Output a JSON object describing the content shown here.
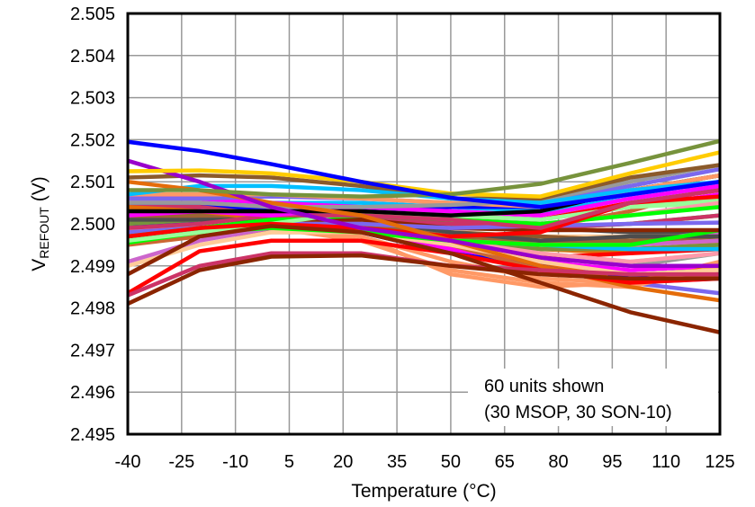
{
  "chart_data": {
    "type": "line",
    "xlabel": "Temperature (°C)",
    "ylabel": {
      "main": "V",
      "subscript": "REFOUT",
      "unit": " (V)"
    },
    "xlim": [
      -40,
      125
    ],
    "ylim": [
      2.495,
      2.505
    ],
    "xticks": [
      "-40",
      "-25",
      "-10",
      "5",
      "20",
      "35",
      "50",
      "65",
      "80",
      "95",
      "110",
      "125"
    ],
    "yticks": [
      "2.495",
      "2.496",
      "2.497",
      "2.498",
      "2.499",
      "2.500",
      "2.501",
      "2.502",
      "2.503",
      "2.504",
      "2.505"
    ],
    "grid": true,
    "legend": "none",
    "annotation": [
      "60 units shown",
      "(30 MSOP, 30 SON-10)"
    ],
    "x": [
      -40,
      -20,
      0,
      25,
      50,
      75,
      100,
      125
    ],
    "series": [
      {
        "color": "#FF9966",
        "values": [
          2.4997,
          2.4998,
          2.4999,
          2.4997,
          2.4991,
          2.4987,
          2.4986,
          2.4988
        ]
      },
      {
        "color": "#7B68EE",
        "values": [
          2.4999,
          2.5,
          2.5,
          2.4998,
          2.4994,
          2.4989,
          2.4986,
          2.49835
        ]
      },
      {
        "color": "#FFCC00",
        "values": [
          2.5,
          2.5,
          2.5001,
          2.5,
          2.4998,
          2.4996,
          2.4995,
          2.4997
        ]
      },
      {
        "color": "#77933C",
        "values": [
          2.4998,
          2.4999,
          2.5,
          2.4999,
          2.4997,
          2.4995,
          2.4994,
          2.4995
        ]
      },
      {
        "color": "#0000FF",
        "values": [
          2.4997,
          2.4999,
          2.5,
          2.5,
          2.4996,
          2.4992,
          2.4987,
          2.4988
        ]
      },
      {
        "color": "#CC6633",
        "values": [
          2.5006,
          2.5006,
          2.5005,
          2.5003,
          2.5001,
          2.4999,
          2.5003,
          2.5009
        ]
      },
      {
        "color": "#E46C0A",
        "values": [
          2.5,
          2.5001,
          2.5002,
          2.5001,
          2.4997,
          2.4994,
          2.4993,
          2.4996
        ]
      },
      {
        "color": "#99FF99",
        "values": [
          2.5004,
          2.5004,
          2.5004,
          2.5003,
          2.5002,
          2.5002,
          2.5004,
          2.5005
        ]
      },
      {
        "color": "#FF0000",
        "values": [
          2.5003,
          2.5004,
          2.5004,
          2.5003,
          2.5002,
          2.5001,
          2.5005,
          2.5008
        ]
      },
      {
        "color": "#00BFFF",
        "values": [
          2.5004,
          2.5005,
          2.5005,
          2.5005,
          2.5004,
          2.5003,
          2.5006,
          2.5009
        ]
      },
      {
        "color": "#FF00FF",
        "values": [
          2.5006,
          2.5006,
          2.5005,
          2.5004,
          2.5002,
          2.5001,
          2.5004,
          2.5007
        ]
      },
      {
        "color": "#FF99AA",
        "values": [
          2.5005,
          2.5005,
          2.5004,
          2.5003,
          2.5001,
          2.5,
          2.5002,
          2.5005
        ]
      },
      {
        "color": "#FFCC99",
        "values": [
          2.5,
          2.5001,
          2.5002,
          2.5001,
          2.4998,
          2.4997,
          2.4997,
          2.4998
        ]
      },
      {
        "color": "#4D4D4D",
        "values": [
          2.5003,
          2.5003,
          2.5002,
          2.5002,
          2.5,
          2.4999,
          2.4998,
          2.4998
        ]
      },
      {
        "color": "#CC66CC",
        "values": [
          2.4999,
          2.5,
          2.5001,
          2.5,
          2.4997,
          2.4996,
          2.4996,
          2.4998
        ]
      },
      {
        "color": "#8B5A2B",
        "values": [
          2.5001,
          2.5002,
          2.5002,
          2.5001,
          2.4998,
          2.4997,
          2.4996,
          2.4996
        ]
      },
      {
        "color": "#00FF00",
        "values": [
          2.4999,
          2.5,
          2.5001,
          2.5001,
          2.5,
          2.4999,
          2.5,
          2.5002
        ]
      },
      {
        "color": "#FF9966",
        "values": [
          2.4999,
          2.5,
          2.5,
          2.4997,
          2.4988,
          2.4985,
          2.4986,
          2.4991
        ]
      },
      {
        "color": "#999999",
        "values": [
          2.5,
          2.5001,
          2.5001,
          2.4999,
          2.4996,
          2.4992,
          2.499,
          2.4993
        ]
      },
      {
        "color": "#7B68EE",
        "values": [
          2.5002,
          2.5002,
          2.5001,
          2.4999,
          2.4994,
          2.499,
          2.4986,
          2.4987
        ]
      },
      {
        "color": "#CC3366",
        "values": [
          2.5004,
          2.5004,
          2.5003,
          2.5001,
          2.5,
          2.4999,
          2.5,
          2.5002
        ]
      },
      {
        "color": "#FF0000",
        "values": [
          2.5002,
          2.5002,
          2.5002,
          2.5,
          2.4995,
          2.4992,
          2.4993,
          2.4994
        ]
      },
      {
        "color": "#99FF99",
        "values": [
          2.5003,
          2.5003,
          2.5003,
          2.5001,
          2.4996,
          2.4993,
          2.4991,
          2.4993
        ]
      },
      {
        "color": "#0000FF",
        "values": [
          2.5,
          2.5,
          2.5,
          2.4998,
          2.4993,
          2.499,
          2.4988,
          2.4989
        ]
      },
      {
        "color": "#FF00FF",
        "values": [
          2.5001,
          2.5001,
          2.5,
          2.4998,
          2.4994,
          2.4991,
          2.4989,
          2.499
        ]
      },
      {
        "color": "#FFCC00",
        "values": [
          2.5001,
          2.5001,
          2.5001,
          2.4999,
          2.4997,
          2.4995,
          2.4995,
          2.4996
        ]
      },
      {
        "color": "#77933C",
        "values": [
          2.5,
          2.5001,
          2.5001,
          2.4998,
          2.4996,
          2.4994,
          2.4994,
          2.4995
        ]
      },
      {
        "color": "#00BFFF",
        "values": [
          2.4996,
          2.4998,
          2.4999,
          2.4998,
          2.4996,
          2.4995,
          2.4994,
          2.4994
        ]
      },
      {
        "color": "#996633",
        "values": [
          2.5002,
          2.5002,
          2.5002,
          2.5,
          2.4997,
          2.4996,
          2.4996,
          2.4997
        ]
      },
      {
        "color": "#E46C0A",
        "values": [
          2.5004,
          2.5003,
          2.5001,
          2.4999,
          2.4995,
          2.4991,
          2.4986,
          2.499
        ]
      },
      {
        "color": "#CC6633",
        "values": [
          2.4995,
          2.4997,
          2.4998,
          2.4998,
          2.4995,
          2.4989,
          2.4986,
          2.4988
        ]
      },
      {
        "color": "#FF9966",
        "values": [
          2.4998,
          2.4999,
          2.4999,
          2.4996,
          2.4989,
          2.4986,
          2.4985,
          2.499
        ]
      },
      {
        "color": "#FFCC99",
        "values": [
          2.499,
          2.4995,
          2.4998,
          2.4998,
          2.4995,
          2.4991,
          2.4988,
          2.4989
        ]
      },
      {
        "color": "#FF99AA",
        "values": [
          2.4998,
          2.5,
          2.5,
          2.4999,
          2.4996,
          2.4993,
          2.4991,
          2.4993
        ]
      },
      {
        "color": "#CC66CC",
        "values": [
          2.4991,
          2.4996,
          2.4999,
          2.4999,
          2.4996,
          2.4995,
          2.4995,
          2.4996
        ]
      },
      {
        "color": "#4D4D4D",
        "values": [
          2.5001,
          2.5001,
          2.5001,
          2.5001,
          2.4998,
          2.4996,
          2.4997,
          2.4997
        ]
      },
      {
        "color": "#00FF00",
        "values": [
          2.49955,
          2.4998,
          2.4999,
          2.4998,
          2.4996,
          2.4995,
          2.4995,
          2.49985
        ]
      },
      {
        "color": "#8B2500",
        "values": [
          2.4997,
          2.4999,
          2.5001,
          2.5001,
          2.4999,
          2.49985,
          2.49985,
          2.49985
        ]
      },
      {
        "color": "#7B68EE",
        "values": [
          2.4998,
          2.4999,
          2.5,
          2.5,
          2.4999,
          2.49995,
          2.5,
          2.50003
        ]
      },
      {
        "color": "#0000FF",
        "values": [
          2.5005,
          2.5005,
          2.5003,
          2.5003,
          2.5004,
          2.5004,
          2.5007,
          2.501
        ]
      },
      {
        "color": "#00FF00",
        "values": [
          2.4997,
          2.4999,
          2.5001,
          2.5002,
          2.5001,
          2.5,
          2.5002,
          2.5004
        ]
      },
      {
        "color": "#99FF99",
        "values": [
          2.4996,
          2.4998,
          2.5,
          2.5003,
          2.5002,
          2.5001,
          2.5004,
          2.5006
        ]
      },
      {
        "color": "#FF0000",
        "values": [
          2.4997,
          2.4999,
          2.5,
          2.4999,
          2.4997,
          2.4998,
          2.5005,
          2.50065
        ]
      },
      {
        "color": "#CC3366",
        "values": [
          2.4999,
          2.5,
          2.5002,
          2.5002,
          2.5001,
          2.4999,
          2.5005,
          2.5008
        ]
      },
      {
        "color": "#FF00FF",
        "values": [
          2.5002,
          2.5003,
          2.5002,
          2.5004,
          2.5003,
          2.5002,
          2.5006,
          2.5009
        ]
      },
      {
        "color": "#000000",
        "values": [
          2.5003,
          2.5003,
          2.5003,
          2.5003,
          2.5002,
          2.5003,
          2.5008,
          2.50115
        ]
      },
      {
        "color": "#7B68EE",
        "values": [
          2.5006,
          2.5006,
          2.50065,
          2.5006,
          2.5005,
          2.5005,
          2.5009,
          2.5013
        ]
      },
      {
        "color": "#FF9966",
        "values": [
          2.5007,
          2.5007,
          2.5007,
          2.5006,
          2.5005,
          2.5004,
          2.5008,
          2.50115
        ]
      },
      {
        "color": "#999999",
        "values": [
          2.5005,
          2.5005,
          2.5004,
          2.5004,
          2.50045,
          2.50055,
          2.501,
          2.5014
        ]
      },
      {
        "color": "#8B5A2B",
        "values": [
          2.5011,
          2.50115,
          2.5011,
          2.5009,
          2.5006,
          2.5006,
          2.5011,
          2.5014
        ]
      },
      {
        "color": "#00BFFF",
        "values": [
          2.5007,
          2.5009,
          2.5009,
          2.5008,
          2.5006,
          2.5005,
          2.5008,
          2.501
        ]
      },
      {
        "color": "#E46C0A",
        "values": [
          2.501,
          2.5008,
          2.5005,
          2.5002,
          2.4996,
          2.499,
          2.4985,
          2.49818
        ]
      },
      {
        "color": "#FF0000",
        "values": [
          2.49835,
          2.49935,
          2.4996,
          2.4996,
          2.4993,
          2.4989,
          2.4986,
          2.4987
        ]
      },
      {
        "color": "#CC3366",
        "values": [
          2.4983,
          2.499,
          2.4993,
          2.4993,
          2.499,
          2.4989,
          2.4988,
          2.4988
        ]
      },
      {
        "color": "#8B2500",
        "values": [
          2.4981,
          2.4989,
          2.49922,
          2.49925,
          2.499,
          2.4988,
          2.4987,
          2.4987
        ]
      },
      {
        "color": "#9900CC",
        "values": [
          2.5015,
          2.501,
          2.5004,
          2.4999,
          2.4996,
          2.4992,
          2.499,
          2.499
        ]
      },
      {
        "color": "#FFCC00",
        "values": [
          2.50125,
          2.50127,
          2.5012,
          2.501,
          2.50072,
          2.50065,
          2.5012,
          2.5017
        ]
      },
      {
        "color": "#77933C",
        "values": [
          2.5008,
          2.5008,
          2.5007,
          2.50065,
          2.5007,
          2.50095,
          2.50145,
          2.50197
        ]
      },
      {
        "color": "#0000FF",
        "values": [
          2.50195,
          2.50173,
          2.50142,
          2.501,
          2.50062,
          2.5004,
          2.5007,
          2.501
        ]
      },
      {
        "color": "#8B2500",
        "values": [
          2.4988,
          2.4997,
          2.49995,
          2.4998,
          2.4993,
          2.4986,
          2.4979,
          2.49742
        ]
      }
    ]
  }
}
